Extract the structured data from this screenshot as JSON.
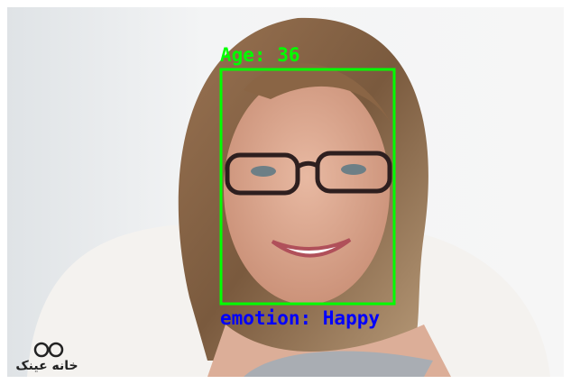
{
  "detection": {
    "age_label": "Age: 36",
    "emotion_label": "emotion: Happy"
  },
  "logo": {
    "text": "خانه عینک"
  }
}
